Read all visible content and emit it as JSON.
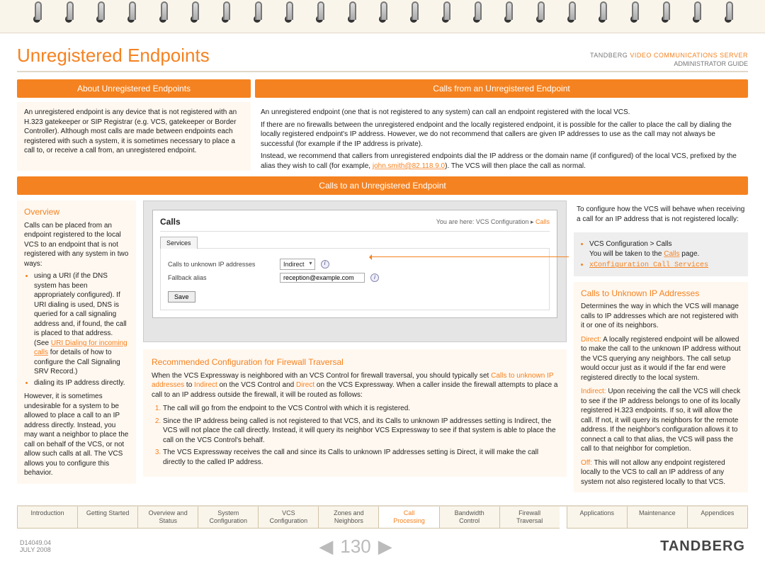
{
  "header": {
    "page_title": "Unregistered Endpoints",
    "brand_line": "TANDBERG",
    "brand_product": "VIDEO COMMUNICATIONS SERVER",
    "subtitle": "ADMINISTRATOR GUIDE"
  },
  "banners": {
    "about": "About Unregistered Endpoints",
    "calls_from": "Calls from an Unregistered Endpoint",
    "calls_to": "Calls to an Unregistered Endpoint"
  },
  "about_text": "An unregistered endpoint is any device that is not registered with an H.323 gatekeeper or SIP Registrar (e.g. VCS, gatekeeper or Border Controller). Although most calls are made between endpoints each registered with such a system, it is sometimes necessary to place a call to, or receive a call from, an unregistered endpoint.",
  "calls_from": {
    "p1": "An unregistered endpoint (one that is not registered to any system) can call an endpoint registered with the local VCS.",
    "p2": "If there are no firewalls between the unregistered endpoint and the locally registered endpoint, it is possible for the caller to place the call by dialing the locally registered endpoint's IP address. However, we do not recommend that callers are given IP addresses to use as the call may not always be successful (for example if the IP address is private).",
    "p3a": "Instead, we recommend that callers from unregistered endpoints dial the IP address or the domain name (if configured) of the local VCS, prefixed by the alias they wish to call (for example, ",
    "example_link": "john.smith@82.118.9.0",
    "p3b": "). The VCS will then place the call as normal."
  },
  "overview": {
    "title": "Overview",
    "intro": "Calls can be placed from an endpoint registered to the local VCS to an endpoint that is not registered with any system in two ways:",
    "bullet1a": "using a URI (if the DNS system has been appropriately configured). If URI dialing is used, DNS is queried for a call signaling address and, if found, the call is placed to that address. (See ",
    "uri_link": "URI Dialing for incoming calls",
    "bullet1b": " for details of how to configure the Call Signaling SRV Record.)",
    "bullet2": "dialing its IP address directly.",
    "after": "However, it is sometimes undesirable for a system to be allowed to place a call to an IP address directly. Instead, you may want a neighbor to place the call on behalf of the VCS, or not allow such calls at all. The VCS allows you to configure this behavior."
  },
  "ui": {
    "title": "Calls",
    "breadcrumb_pre": "You are here: VCS Configuration ▸ ",
    "breadcrumb_last": "Calls",
    "tab": "Services",
    "row1_label": "Calls to unknown IP addresses",
    "row1_value": "Indirect",
    "row2_label": "Fallback alias",
    "row2_value": "reception@example.com",
    "save": "Save"
  },
  "rec": {
    "title": "Recommended Configuration for Firewall Traversal",
    "intro_a": "When the VCS Expressway is neighbored with an VCS Control for firewall traversal, you should typically set ",
    "phrase1": "Calls to unknown IP addresses",
    "to": " to ",
    "indirect": "Indirect",
    "intro_b": " on the VCS Control and ",
    "direct": "Direct",
    "intro_c": " on the VCS Expressway. When a caller inside the firewall attempts to place a call to an IP address outside the firewall, it will be routed as follows:",
    "li1": "The call will go from the endpoint to the VCS Control with which it is registered.",
    "li2a": "Since the IP address being called is not registered to that VCS, and its ",
    "li2b": " setting is ",
    "li2c": ", the VCS will not place the call directly. Instead, it will query its neighbor VCS Expressway to see if that system is able to place the call on the VCS Control's behalf.",
    "li3a": "The VCS Expressway receives the call and since its ",
    "li3b": " setting is ",
    "li3c": ", it will make the call directly to the called IP address."
  },
  "right": {
    "intro": "To configure how the VCS will behave when receiving a call for an IP address that is not registered locally:",
    "nav1": "VCS Configuration > Calls",
    "nav1_after_a": "You will be taken to the ",
    "nav1_after_link": "Calls",
    "nav1_after_b": " page.",
    "nav2": "xConfiguration Call Services",
    "section_title": "Calls to Unknown IP Addresses",
    "desc": "Determines the way in which the VCS will manage calls to IP addresses which are not registered with it or one of its neighbors.",
    "direct_label": "Direct:",
    "direct_text": " A locally registered endpoint will be allowed to make the call to the unknown IP address without the VCS querying any neighbors. The call setup would occur just as it would if the far end were registered directly to the local system.",
    "indirect_label": "Indirect:",
    "indirect_text": " Upon receiving the call the VCS will check to see if the IP address belongs to one of its locally registered H.323 endpoints. If so, it will allow the call. If not, it will query its neighbors for the remote address. If the neighbor's configuration allows it to connect a call to that alias, the VCS will pass the call to that neighbor for completion.",
    "off_label": "Off:",
    "off_text": " This will not allow any endpoint registered locally to the VCS to call an IP address of any system not also registered locally to that VCS."
  },
  "nav": {
    "tabs": [
      {
        "l1": "Introduction",
        "l2": ""
      },
      {
        "l1": "Getting Started",
        "l2": ""
      },
      {
        "l1": "Overview and",
        "l2": "Status"
      },
      {
        "l1": "System",
        "l2": "Configuration"
      },
      {
        "l1": "VCS",
        "l2": "Configuration"
      },
      {
        "l1": "Zones and",
        "l2": "Neighbors"
      },
      {
        "l1": "Call",
        "l2": "Processing",
        "active": true
      },
      {
        "l1": "Bandwidth",
        "l2": "Control"
      },
      {
        "l1": "Firewall",
        "l2": "Traversal"
      },
      {
        "l1": "Applications",
        "l2": ""
      },
      {
        "l1": "Maintenance",
        "l2": ""
      },
      {
        "l1": "Appendices",
        "l2": ""
      }
    ]
  },
  "footer": {
    "doc_id": "D14049.04",
    "date": "JULY 2008",
    "page": "130",
    "brand": "TANDBERG"
  }
}
